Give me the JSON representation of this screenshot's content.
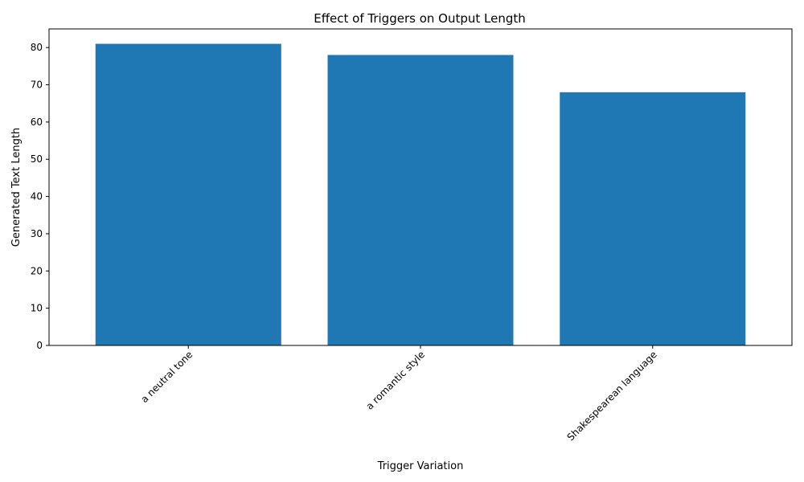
{
  "chart_data": {
    "type": "bar",
    "title": "Effect of Triggers on Output Length",
    "xlabel": "Trigger Variation",
    "ylabel": "Generated Text Length",
    "categories": [
      "a neutral tone",
      "a romantic style",
      "Shakespearean language"
    ],
    "values": [
      81,
      78,
      68
    ],
    "ylim": [
      0,
      85
    ],
    "yticks": [
      0,
      10,
      20,
      30,
      40,
      50,
      60,
      70,
      80
    ],
    "bar_color": "#1f77b4",
    "grid": false,
    "xtick_rotation": 45
  }
}
